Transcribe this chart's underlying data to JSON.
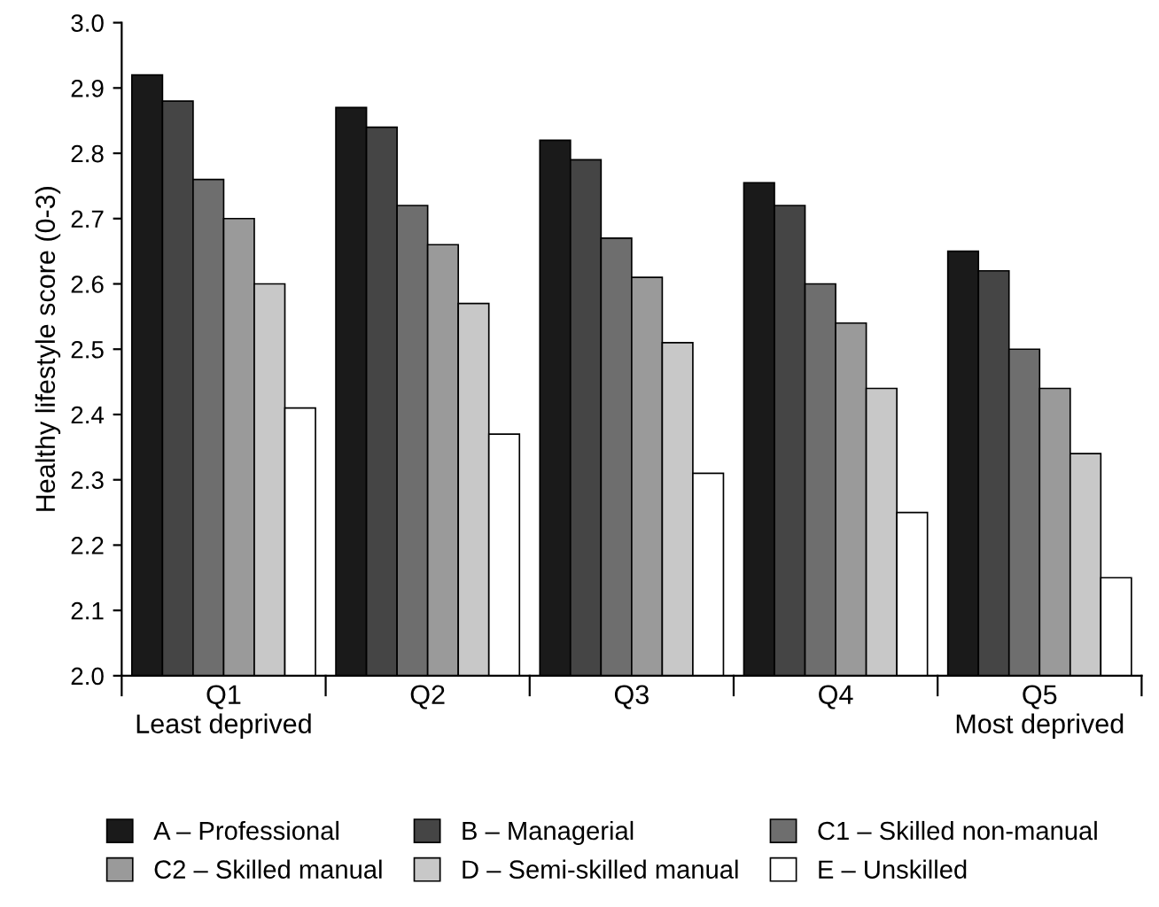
{
  "chart_data": {
    "type": "bar",
    "ylabel": "Healthy lifestyle score (0-3)",
    "categories": [
      "Q1\nLeast deprived",
      "Q2",
      "Q3",
      "Q4",
      "Q5\nMost deprived"
    ],
    "series": [
      {
        "name": "A – Professional",
        "color": "#1a1a1a",
        "values": [
          2.92,
          2.87,
          2.82,
          2.755,
          2.65
        ]
      },
      {
        "name": "B – Managerial",
        "color": "#454545",
        "values": [
          2.88,
          2.84,
          2.79,
          2.72,
          2.62
        ]
      },
      {
        "name": "C1 – Skilled non-manual",
        "color": "#6e6e6e",
        "values": [
          2.76,
          2.72,
          2.67,
          2.6,
          2.5
        ]
      },
      {
        "name": "C2 – Skilled manual",
        "color": "#9a9a9a",
        "values": [
          2.7,
          2.66,
          2.61,
          2.54,
          2.44
        ]
      },
      {
        "name": "D – Semi-skilled manual",
        "color": "#c8c8c8",
        "values": [
          2.6,
          2.57,
          2.51,
          2.44,
          2.34
        ]
      },
      {
        "name": "E – Unskilled",
        "color": "#ffffff",
        "values": [
          2.41,
          2.37,
          2.31,
          2.25,
          2.15
        ]
      }
    ],
    "ylim": [
      2.0,
      3.0
    ],
    "yticks": [
      {
        "value": 2.0,
        "label": "2.0"
      },
      2.1,
      2.2,
      2.3,
      2.4,
      2.5,
      2.6,
      2.7,
      2.8,
      2.9,
      {
        "value": 3.0,
        "label": "3.0"
      }
    ],
    "grid": false,
    "legend": "bottom"
  }
}
